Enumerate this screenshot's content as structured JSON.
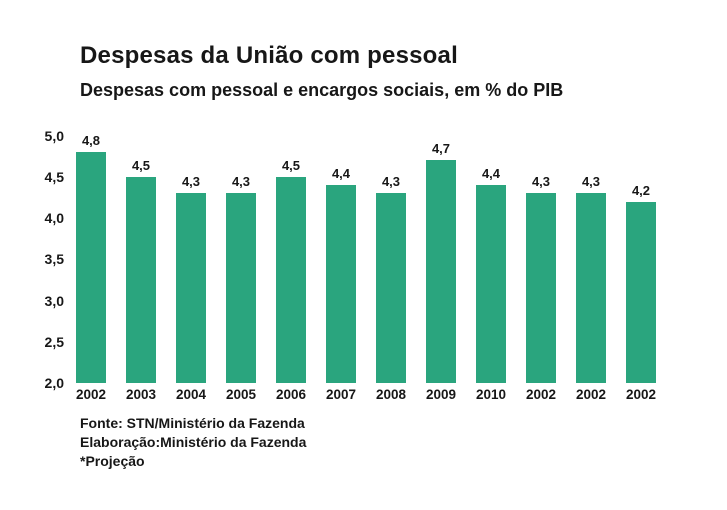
{
  "header": {
    "title": "Despesas da União com pessoal",
    "subtitle": "Despesas com pessoal e encargos sociais, em % do PIB"
  },
  "chart_data": {
    "type": "bar",
    "title": "Despesas da União com pessoal",
    "subtitle": "Despesas com pessoal e encargos sociais, em % do PIB",
    "categories": [
      "2002",
      "2003",
      "2004",
      "2005",
      "2006",
      "2007",
      "2008",
      "2009",
      "2010",
      "2002",
      "2002",
      "2002"
    ],
    "values": [
      4.8,
      4.5,
      4.3,
      4.3,
      4.5,
      4.4,
      4.3,
      4.7,
      4.4,
      4.3,
      4.3,
      4.2
    ],
    "value_labels": [
      "4,8",
      "4,5",
      "4,3",
      "4,3",
      "4,5",
      "4,4",
      "4,3",
      "4,7",
      "4,4",
      "4,3",
      "4,3",
      "4,2"
    ],
    "xlabel": "",
    "ylabel": "",
    "ylim": [
      2.0,
      5.0
    ],
    "yticks": [
      5.0,
      4.5,
      4.0,
      3.5,
      3.0,
      2.5,
      2.0
    ],
    "ytick_labels": [
      "5,0",
      "4,5",
      "4,0",
      "3,5",
      "3,0",
      "2,5",
      "2,0"
    ],
    "grid": false,
    "legend": null,
    "bar_color": "#2AA57E",
    "text_color": "#171717",
    "background_color": "#FFFFFF"
  },
  "footer": {
    "source": "Fonte: STN/Ministério da Fazenda",
    "elaboration": "Elaboração:Ministério da Fazenda",
    "projection": "*Projeção"
  }
}
